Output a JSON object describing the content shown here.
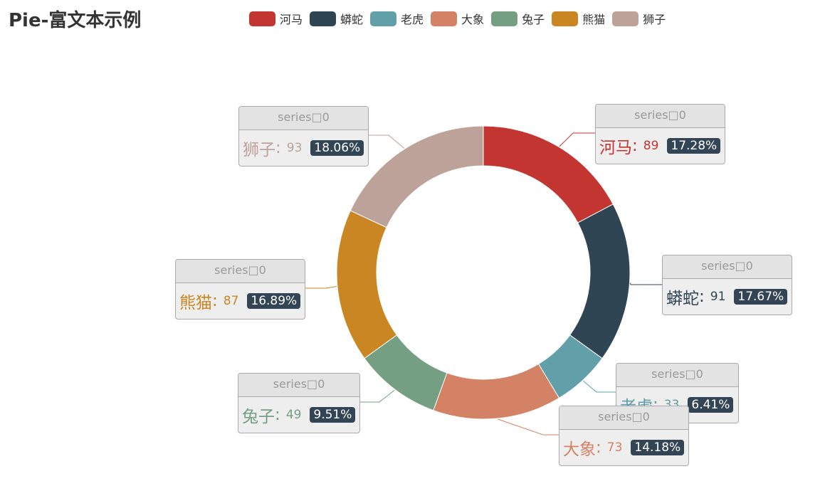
{
  "title": "Pie-富文本示例",
  "colors": [
    "#c23531",
    "#2f4554",
    "#61a0a8",
    "#d48265",
    "#749f83",
    "#ca8622",
    "#bda29a"
  ],
  "label_header_text": "series□0",
  "chart_data": {
    "type": "pie",
    "subtype": "donut",
    "title": "Pie-富文本示例",
    "legend_position": "top",
    "series": [
      {
        "name": "series□0",
        "data": [
          {
            "name": "河马",
            "value": 89,
            "percent": "17.28%"
          },
          {
            "name": "蟒蛇",
            "value": 91,
            "percent": "17.67%"
          },
          {
            "name": "老虎",
            "value": 33,
            "percent": "6.41%"
          },
          {
            "name": "大象",
            "value": 73,
            "percent": "14.18%"
          },
          {
            "name": "兔子",
            "value": 49,
            "percent": "9.51%"
          },
          {
            "name": "熊猫",
            "value": 87,
            "percent": "16.89%"
          },
          {
            "name": "狮子",
            "value": 93,
            "percent": "18.06%"
          }
        ]
      }
    ]
  }
}
